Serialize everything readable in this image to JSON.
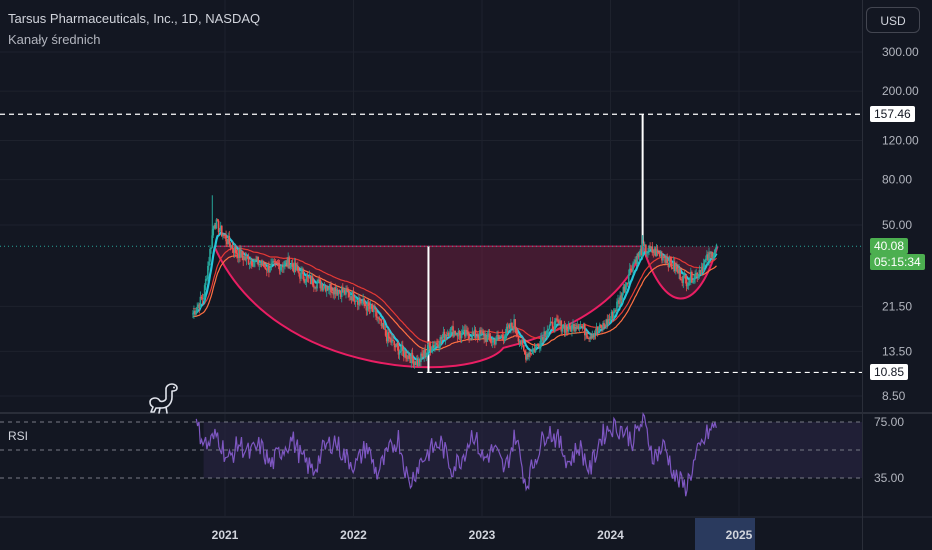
{
  "header": {
    "title": "Tarsus Pharmaceuticals, Inc., 1D, NASDAQ",
    "indicator": "Kanały średnich"
  },
  "currency_button": "USD",
  "rsi_label": "RSI",
  "logo_icon": "dinosaur-icon",
  "colors": {
    "background": "#131722",
    "grid": "#1e222d",
    "axis_text": "#b2b5be",
    "bull": "#26a69a",
    "bear": "#ef5350",
    "bowl_line": "#e91e63",
    "bowl_fill": "#6b1f3e",
    "ema_fast": "#26c6da",
    "ema_slow_a": "#e53935",
    "ema_slow_b": "#ff7043",
    "rsi_line": "#7e57c2",
    "rsi_band": "#2a2545",
    "price_tag_bg": "#4caf50",
    "level_line": "#ffffff"
  },
  "price_tags": [
    {
      "key": "high_tag",
      "value": "157.46"
    },
    {
      "key": "current_price",
      "value": "40.08"
    },
    {
      "key": "countdown",
      "value": "05:15:34"
    },
    {
      "key": "low_tag",
      "value": "10.85"
    }
  ],
  "chart_data": [
    {
      "type": "candlestick",
      "scale": "log",
      "y_ticks": [
        "300.00",
        "200.00",
        "120.00",
        "80.00",
        "50.00",
        "21.50",
        "13.50",
        "8.50"
      ],
      "y_tick_values": [
        300,
        200,
        120,
        80,
        50,
        21.5,
        13.5,
        8.5
      ],
      "x_ticks": [
        "2021",
        "2022",
        "2023",
        "2024",
        "2025"
      ],
      "x_tick_values": [
        "2021-01",
        "2022-01",
        "2023-01",
        "2024-01",
        "2025-01"
      ],
      "current_price": 40.08,
      "horizontal_levels": [
        157.46,
        40.08,
        10.85
      ],
      "series": [
        {
          "name": "Tarsus Pharmaceuticals, Inc.",
          "x": [
            "2020-10",
            "2020-11",
            "2020-12",
            "2021-01",
            "2021-02",
            "2021-03",
            "2021-04",
            "2021-05",
            "2021-06",
            "2021-07",
            "2021-08",
            "2021-09",
            "2021-10",
            "2021-11",
            "2021-12",
            "2022-01",
            "2022-02",
            "2022-03",
            "2022-04",
            "2022-05",
            "2022-06",
            "2022-07",
            "2022-08",
            "2022-09",
            "2022-10",
            "2022-11",
            "2022-12",
            "2023-01",
            "2023-02",
            "2023-03",
            "2023-04",
            "2023-05",
            "2023-06",
            "2023-07",
            "2023-08",
            "2023-09",
            "2023-10",
            "2023-11",
            "2023-12",
            "2024-01",
            "2024-02",
            "2024-03",
            "2024-04",
            "2024-05",
            "2024-06",
            "2024-07",
            "2024-08",
            "2024-09",
            "2024-10",
            "2024-11"
          ],
          "values": [
            20,
            24,
            52,
            44,
            38,
            35,
            34,
            32,
            33,
            34,
            30,
            28,
            27,
            26,
            25,
            24,
            22,
            20,
            16,
            14,
            13,
            12,
            14,
            15,
            17,
            16,
            16,
            16,
            15,
            16,
            18,
            13,
            14,
            17,
            18,
            17,
            18,
            16,
            17,
            19,
            24,
            33,
            39,
            38,
            36,
            32,
            28,
            30,
            35,
            40
          ]
        }
      ]
    },
    {
      "type": "line",
      "name": "RSI",
      "y_ticks": [
        "75.00",
        "35.00"
      ],
      "y_tick_values": [
        75,
        35
      ],
      "ylim": [
        20,
        90
      ],
      "series": [
        {
          "name": "RSI",
          "values": [
            72,
            58,
            66,
            47,
            60,
            52,
            58,
            44,
            55,
            63,
            48,
            40,
            56,
            62,
            50,
            44,
            58,
            38,
            52,
            64,
            30,
            46,
            55,
            60,
            42,
            50,
            68,
            48,
            56,
            40,
            66,
            30,
            52,
            70,
            62,
            46,
            58,
            40,
            64,
            72,
            70,
            62,
            76,
            50,
            58,
            36,
            28,
            50,
            66,
            74
          ]
        }
      ]
    }
  ]
}
